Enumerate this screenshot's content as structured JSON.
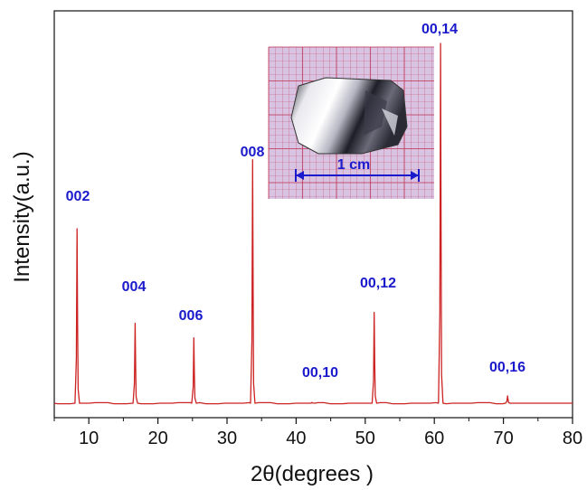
{
  "chart_data": {
    "type": "line",
    "title": "",
    "xlabel": "2θ(degrees  )",
    "ylabel": "Intensity(a.u.)",
    "xlim": [
      5,
      80
    ],
    "ylim": [
      0,
      1.0
    ],
    "x_ticks": [
      10,
      20,
      30,
      40,
      50,
      60,
      70,
      80
    ],
    "grid": false,
    "legend": "none",
    "line_color": "#cc2222",
    "label_color": "#1a1acc",
    "baseline": 0.01,
    "peaks": [
      {
        "label": "002",
        "x": 8.3,
        "y": 0.49
      },
      {
        "label": "004",
        "x": 16.7,
        "y": 0.23
      },
      {
        "label": "006",
        "x": 25.2,
        "y": 0.19
      },
      {
        "label": "008",
        "x": 33.7,
        "y": 0.68
      },
      {
        "label": "00,10",
        "x": 42.3,
        "y": 0.012
      },
      {
        "label": "00,12",
        "x": 51.3,
        "y": 0.26
      },
      {
        "label": "00,14",
        "x": 60.9,
        "y": 1.0
      },
      {
        "label": "00,16",
        "x": 70.6,
        "y": 0.03
      }
    ],
    "inset": {
      "type": "photo",
      "subject": "crystal on millimeter grid paper",
      "scale_bar_label": "1 cm"
    }
  }
}
